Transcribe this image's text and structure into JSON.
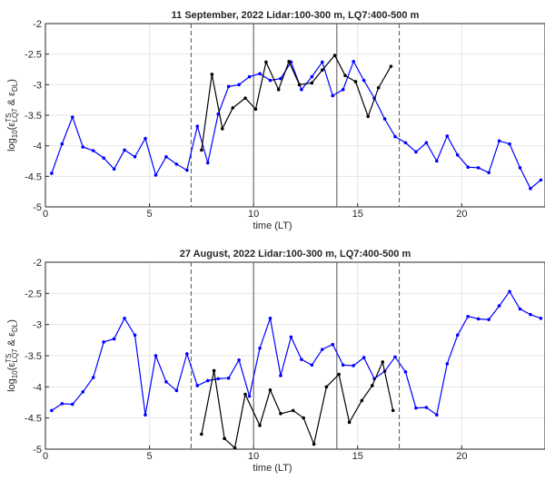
{
  "chart_data": [
    {
      "type": "line",
      "title": "11 September, 2022  Lidar:100-300 m, LQ7:400-500 m",
      "x_label": "time (LT)",
      "y_label_parts": [
        "log",
        "10",
        "(ε",
        "TS",
        "LQ7",
        " & ε",
        "DL",
        ")"
      ],
      "xlim": [
        0,
        24
      ],
      "xticks": [
        0,
        5,
        10,
        15,
        20
      ],
      "ylim": [
        -5,
        -2
      ],
      "yticks": [
        -5,
        -4.5,
        -4,
        -3.5,
        -3,
        -2.5,
        -2
      ],
      "grid": true,
      "vlines": [
        {
          "x": 7,
          "style": "dashed"
        },
        {
          "x": 10,
          "style": "solid"
        },
        {
          "x": 14,
          "style": "solid"
        },
        {
          "x": 17,
          "style": "dashed"
        }
      ],
      "series": [
        {
          "color": "#0000ff",
          "x": [
            0.3,
            0.8,
            1.3,
            1.8,
            2.3,
            2.8,
            3.3,
            3.8,
            4.3,
            4.8,
            5.3,
            5.8,
            6.3,
            6.8,
            7.3,
            7.8,
            8.3,
            8.8,
            9.3,
            9.8,
            10.3,
            10.8,
            11.3,
            11.8,
            12.3,
            12.8,
            13.3,
            13.8,
            14.3,
            14.8,
            15.3,
            15.8,
            16.3,
            16.8,
            17.3,
            17.8,
            18.3,
            18.8,
            19.3,
            19.8,
            20.3,
            20.8,
            21.3,
            21.8,
            22.3,
            22.8,
            23.3,
            23.8
          ],
          "values": [
            -4.45,
            -3.97,
            -3.53,
            -4.02,
            -4.08,
            -4.2,
            -4.38,
            -4.07,
            -4.18,
            -3.88,
            -4.48,
            -4.18,
            -4.3,
            -4.4,
            -3.68,
            -4.28,
            -3.48,
            -3.03,
            -3.0,
            -2.87,
            -2.82,
            -2.93,
            -2.9,
            -2.63,
            -3.08,
            -2.87,
            -2.63,
            -3.18,
            -3.08,
            -2.62,
            -2.93,
            -3.22,
            -3.56,
            -3.85,
            -3.95,
            -4.1,
            -3.95,
            -4.25,
            -3.84,
            -4.15,
            -4.35,
            -4.36,
            -4.44,
            -3.92,
            -3.97,
            -4.36,
            -4.7,
            -4.56
          ]
        },
        {
          "color": "#000000",
          "x": [
            7.5,
            8.0,
            8.5,
            9.0,
            9.6,
            10.1,
            10.6,
            11.2,
            11.7,
            12.2,
            12.8,
            13.3,
            13.9,
            14.4,
            14.9,
            15.5,
            16.0,
            16.6
          ],
          "values": [
            -4.07,
            -2.83,
            -3.72,
            -3.38,
            -3.22,
            -3.4,
            -2.63,
            -3.08,
            -2.62,
            -3.0,
            -2.97,
            -2.76,
            -2.52,
            -2.85,
            -2.95,
            -3.52,
            -3.05,
            -2.7
          ]
        }
      ]
    },
    {
      "type": "line",
      "title": "27 August, 2022  Lidar:100-300 m, LQ7:400-500 m",
      "x_label": "time (LT)",
      "y_label_parts": [
        "log",
        "10",
        "(ε",
        "TS",
        "LQ7",
        " & ε",
        "DL",
        ")"
      ],
      "xlim": [
        0,
        24
      ],
      "xticks": [
        0,
        5,
        10,
        15,
        20
      ],
      "ylim": [
        -5,
        -2
      ],
      "yticks": [
        -5,
        -4.5,
        -4,
        -3.5,
        -3,
        -2.5,
        -2
      ],
      "grid": true,
      "vlines": [
        {
          "x": 7,
          "style": "dashed"
        },
        {
          "x": 10,
          "style": "solid"
        },
        {
          "x": 14,
          "style": "solid"
        },
        {
          "x": 17,
          "style": "dashed"
        }
      ],
      "series": [
        {
          "color": "#0000ff",
          "x": [
            0.3,
            0.8,
            1.3,
            1.8,
            2.3,
            2.8,
            3.3,
            3.8,
            4.3,
            4.8,
            5.3,
            5.8,
            6.3,
            6.8,
            7.3,
            7.8,
            8.3,
            8.8,
            9.3,
            9.8,
            10.3,
            10.8,
            11.3,
            11.8,
            12.3,
            12.8,
            13.3,
            13.8,
            14.3,
            14.8,
            15.3,
            15.8,
            16.3,
            16.8,
            17.3,
            17.8,
            18.3,
            18.8,
            19.3,
            19.8,
            20.3,
            20.8,
            21.3,
            21.8,
            22.3,
            22.8,
            23.3,
            23.8
          ],
          "values": [
            -4.38,
            -4.27,
            -4.28,
            -4.08,
            -3.85,
            -3.28,
            -3.23,
            -2.9,
            -3.17,
            -4.45,
            -3.5,
            -3.92,
            -4.06,
            -3.47,
            -3.98,
            -3.9,
            -3.87,
            -3.86,
            -3.57,
            -4.15,
            -3.38,
            -2.9,
            -3.82,
            -3.2,
            -3.56,
            -3.65,
            -3.4,
            -3.32,
            -3.65,
            -3.66,
            -3.53,
            -3.87,
            -3.75,
            -3.52,
            -3.76,
            -4.34,
            -4.33,
            -4.45,
            -3.63,
            -3.17,
            -2.87,
            -2.91,
            -2.92,
            -2.7,
            -2.47,
            -2.75,
            -2.84,
            -2.9
          ]
        },
        {
          "color": "#000000",
          "x": [
            7.5,
            8.1,
            8.6,
            9.1,
            9.6,
            10.3,
            10.8,
            11.3,
            11.9,
            12.4,
            12.9,
            13.5,
            14.1,
            14.6,
            15.2,
            15.7,
            16.2,
            16.7
          ],
          "values": [
            -4.76,
            -3.74,
            -4.83,
            -4.98,
            -4.12,
            -4.62,
            -4.05,
            -4.43,
            -4.38,
            -4.5,
            -4.92,
            -4.0,
            -3.8,
            -4.57,
            -4.22,
            -3.98,
            -3.6,
            -4.38
          ]
        }
      ]
    }
  ]
}
